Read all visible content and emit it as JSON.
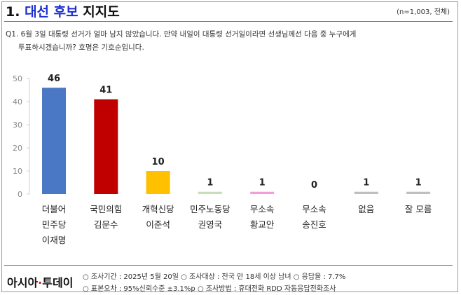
{
  "header": {
    "title_num": "1.",
    "title_highlight": "대선 후보",
    "title_rest": "지지도",
    "sample_note": "(n=1,003, 전체)"
  },
  "question": {
    "line1": "Q1. 6월 3일 대통령 선거가 얼마 남지 않았습니다. 만약 내일이 대통령 선거일이라면 선생님께선 다음 중 누구에게",
    "line2": "투표하시겠습니까? 호명은 기호순입니다."
  },
  "chart_data": {
    "type": "bar",
    "categories": [
      [
        "더불어",
        "민주당",
        "이재명"
      ],
      [
        "국민의힘",
        "김문수"
      ],
      [
        "개혁신당",
        "이준석"
      ],
      [
        "민주노동당",
        "권영국"
      ],
      [
        "무소속",
        "황교안"
      ],
      [
        "무소속",
        "송진호"
      ],
      [
        "없음"
      ],
      [
        "잘 모름"
      ]
    ],
    "values": [
      46,
      41,
      10,
      1,
      1,
      0,
      1,
      1
    ],
    "value_labels": [
      "46",
      "41",
      "10",
      "1",
      "1",
      "0",
      "1",
      "1"
    ],
    "colors": [
      "#4a78c5",
      "#c00000",
      "#ffc000",
      "#c5e0b4",
      "#f49ddb",
      "#bfbfbf",
      "#bfbfbf",
      "#bfbfbf"
    ],
    "yticks": [
      "0",
      "10",
      "20",
      "30",
      "40",
      "50"
    ],
    "ylim": [
      0,
      50
    ],
    "grid": false,
    "legend": "none"
  },
  "footer": {
    "logo_text_a": "아시아",
    "logo_dot": "·",
    "logo_text_b": "투데이",
    "meta_line1": "○ 조사기간 : 2025년 5월 20일 ○ 조사대상 : 전국 만 18세 이상 남녀 ○ 응답율 : 7.7%",
    "meta_line2": "○ 표본오차 : 95%신뢰수준 ±3.1%p ○ 조사방법 : 휴대전화 RDD 자동응답전화조사"
  }
}
